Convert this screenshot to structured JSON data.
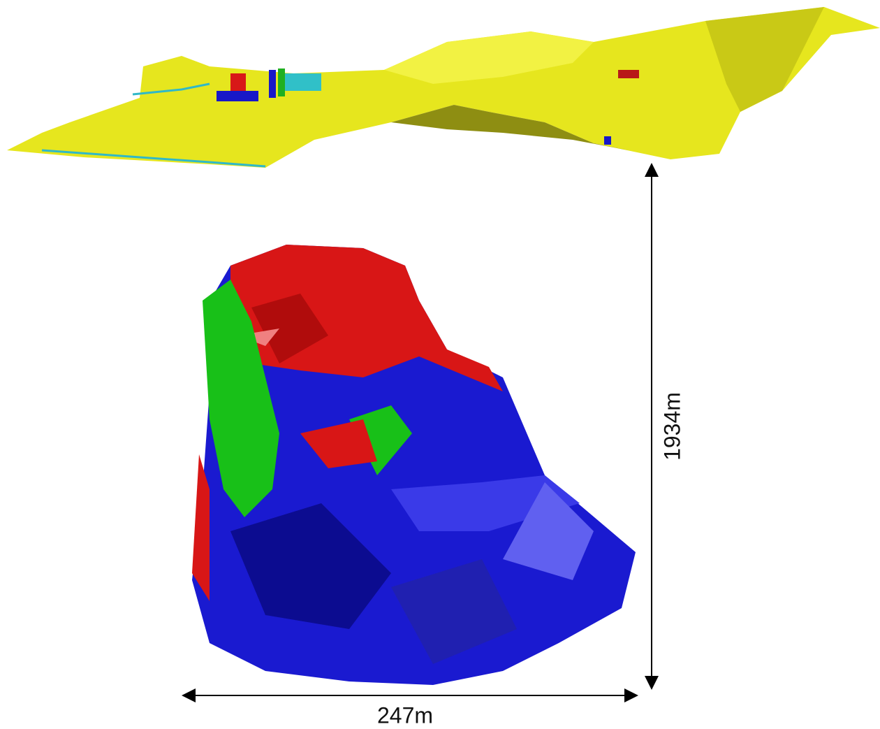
{
  "dimensions": {
    "height": "1934m",
    "width": "247m"
  }
}
